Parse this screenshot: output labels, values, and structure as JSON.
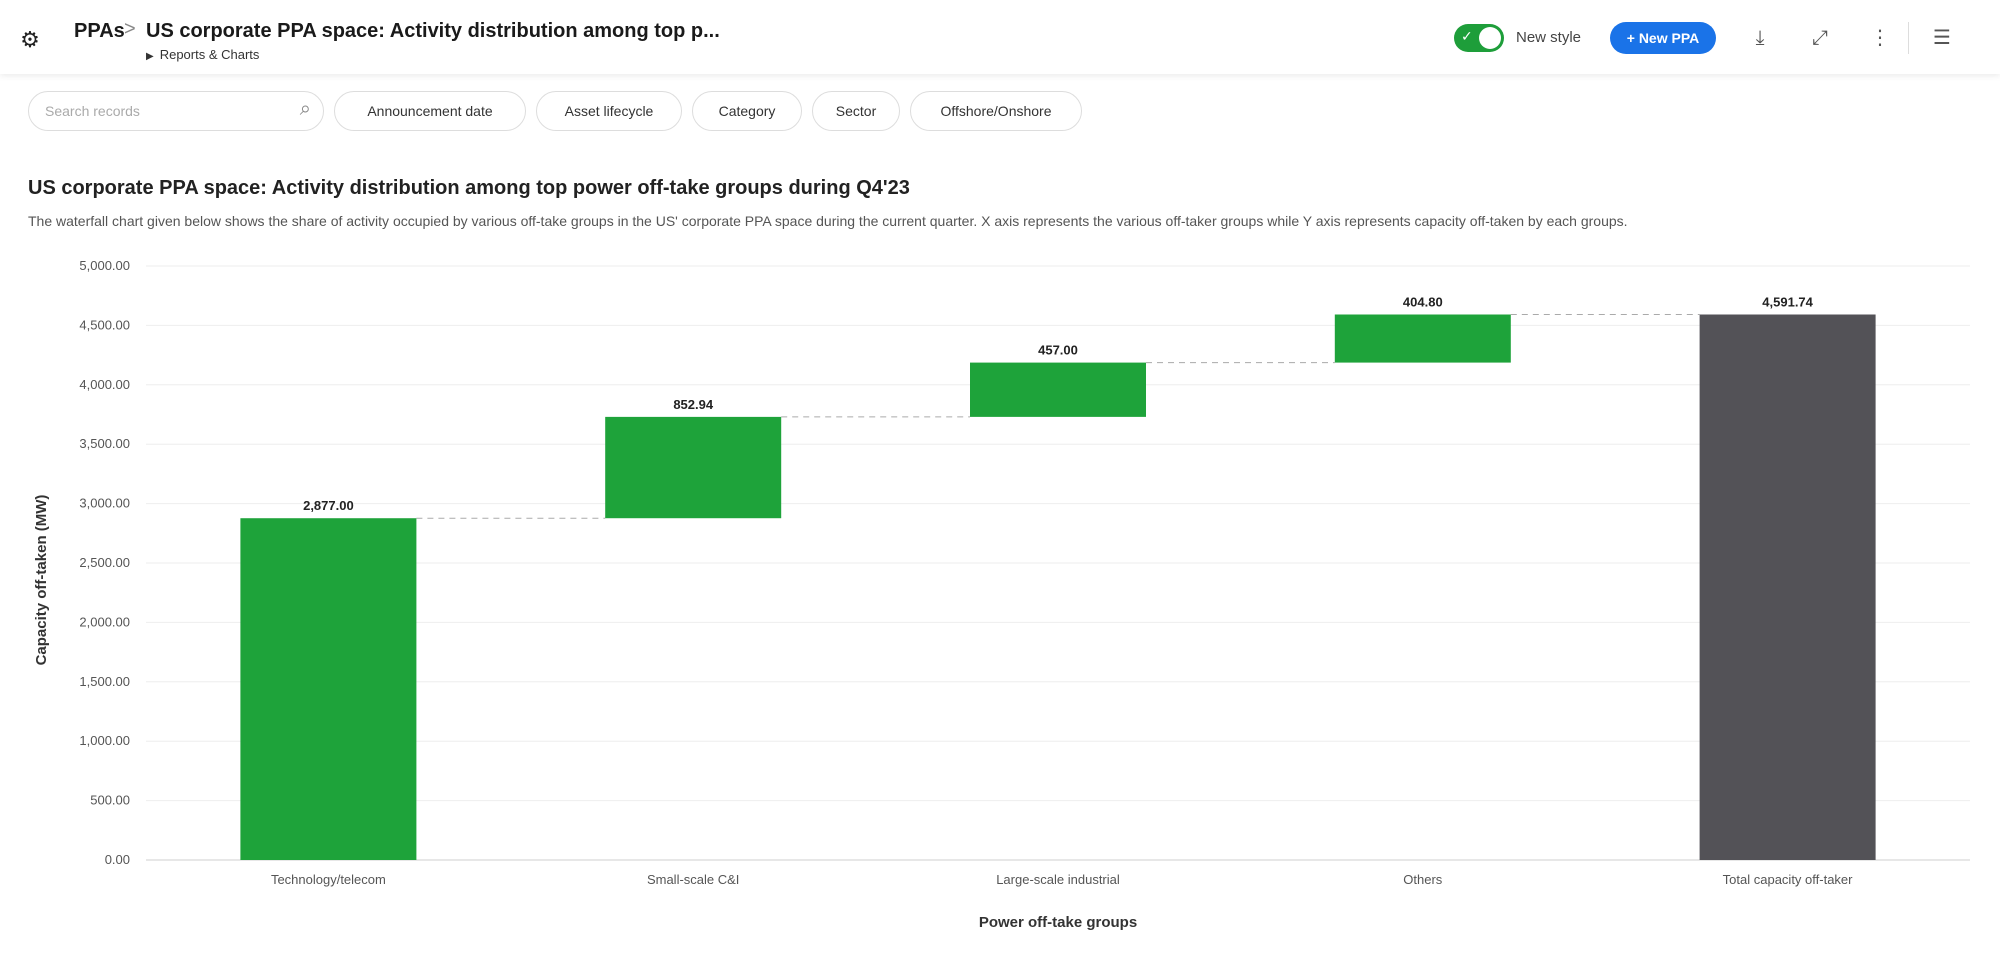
{
  "header": {
    "root": "PPAs",
    "separator": ">",
    "title": "US corporate PPA space: Activity distribution among top p...",
    "sub": "Reports & Charts",
    "toggle_label": "New style",
    "new_button": "+ New PPA"
  },
  "filters": {
    "search_placeholder": "Search records",
    "chips": [
      "Announcement date",
      "Asset lifecycle",
      "Category",
      "Sector",
      "Offshore/Onshore"
    ]
  },
  "chart_data": {
    "type": "waterfall",
    "title": "US corporate PPA space: Activity distribution among top power off-take groups during Q4'23",
    "description": "The waterfall chart given below shows the share of activity occupied by various off-take groups in the US' corporate PPA space during the current quarter. X axis represents the various off-taker groups while Y axis represents capacity off-taken by each groups.",
    "xlabel": "Power off-take groups",
    "ylabel": "Capacity off-taken (MW)",
    "ylim": [
      0,
      5000
    ],
    "ytick_step": 500,
    "yticks": [
      "0.00",
      "500.00",
      "1,000.00",
      "1,500.00",
      "2,000.00",
      "2,500.00",
      "3,000.00",
      "3,500.00",
      "4,000.00",
      "4,500.00",
      "5,000.00"
    ],
    "categories": [
      "Technology/telecom",
      "Small-scale C&I",
      "Large-scale industrial",
      "Others",
      "Total capacity off-taker"
    ],
    "values": [
      2877.0,
      852.94,
      457.0,
      404.8,
      4591.74
    ],
    "value_labels": [
      "2,877.00",
      "852.94",
      "457.00",
      "404.80",
      "4,591.74"
    ],
    "is_total": [
      false,
      false,
      false,
      false,
      true
    ],
    "colors": {
      "increase": "#1ea33a",
      "total": "#535257"
    }
  }
}
